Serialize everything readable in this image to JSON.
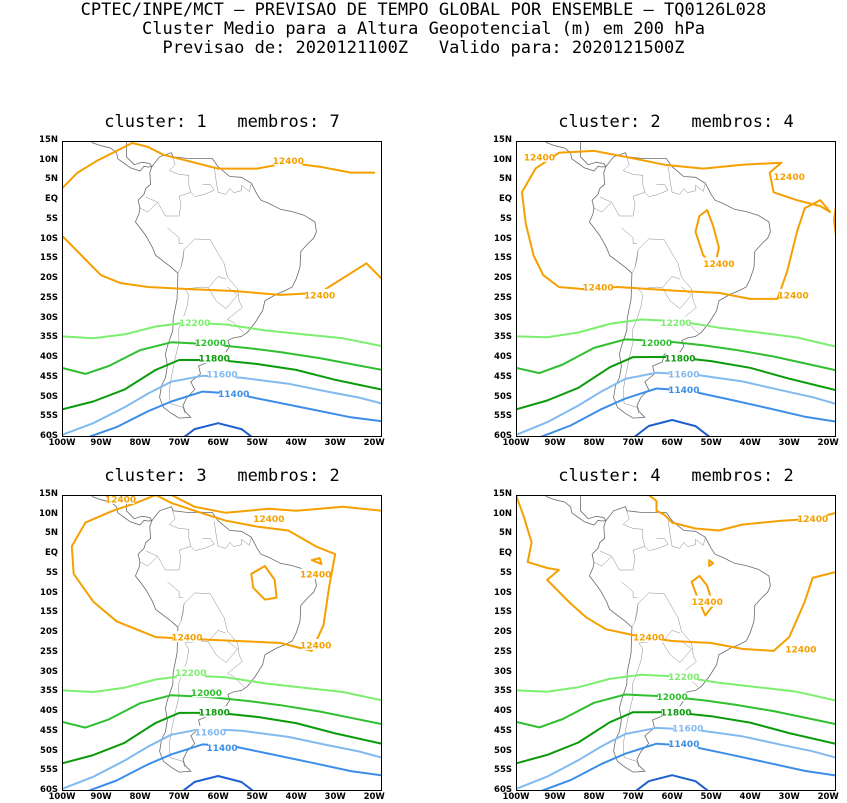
{
  "header": {
    "line1": "CPTEC/INPE/MCT – PREVISAO DE TEMPO GLOBAL POR ENSEMBLE – TQ0126L028",
    "line2": "Cluster Medio para a Altura Geopotencial (m) em 200 hPa",
    "line3": "Previsao de: 2020121100Z   Valido para: 2020121500Z"
  },
  "lat_labels": [
    "15N",
    "10N",
    "5N",
    "EQ",
    "5S",
    "10S",
    "15S",
    "20S",
    "25S",
    "30S",
    "35S",
    "40S",
    "45S",
    "50S",
    "55S",
    "60S"
  ],
  "lon_labels": [
    "100W",
    "90W",
    "80W",
    "70W",
    "60W",
    "50W",
    "40W",
    "30W",
    "20W"
  ],
  "contour_colors": {
    "12400": "#f5a000",
    "12200": "#7cef6e",
    "12000": "#2fbf2f",
    "11800": "#0a9b0a",
    "11600": "#82baf0",
    "11400": "#3c8ee8",
    "11200": "#1e5fd0"
  },
  "panels": [
    {
      "title": "cluster: 1   membros: 7",
      "contour_labels": [
        {
          "value": "12400",
          "lon": -42,
          "lat": 10
        },
        {
          "value": "12400",
          "lon": -34,
          "lat": -24
        },
        {
          "value": "12200",
          "lon": -66,
          "lat": -31
        },
        {
          "value": "12000",
          "lon": -62,
          "lat": -36
        },
        {
          "value": "11800",
          "lon": -61,
          "lat": -40
        },
        {
          "value": "11600",
          "lon": -59,
          "lat": -44
        },
        {
          "value": "11400",
          "lon": -56,
          "lat": -49
        }
      ]
    },
    {
      "title": "cluster: 2   membros: 4",
      "contour_labels": [
        {
          "value": "12400",
          "lon": -94,
          "lat": 11
        },
        {
          "value": "12400",
          "lon": -30,
          "lat": 6
        },
        {
          "value": "12400",
          "lon": -48,
          "lat": -16
        },
        {
          "value": "12400",
          "lon": -79,
          "lat": -22
        },
        {
          "value": "12400",
          "lon": -29,
          "lat": -24
        },
        {
          "value": "12200",
          "lon": -59,
          "lat": -31
        },
        {
          "value": "12000",
          "lon": -64,
          "lat": -36
        },
        {
          "value": "11800",
          "lon": -58,
          "lat": -40
        },
        {
          "value": "11600",
          "lon": -57,
          "lat": -44
        },
        {
          "value": "11400",
          "lon": -57,
          "lat": -48
        }
      ]
    },
    {
      "title": "cluster: 3   membros: 2",
      "contour_labels": [
        {
          "value": "12400",
          "lon": -85,
          "lat": 14
        },
        {
          "value": "12400",
          "lon": -47,
          "lat": 9
        },
        {
          "value": "12400",
          "lon": -35,
          "lat": -5
        },
        {
          "value": "12400",
          "lon": -68,
          "lat": -21
        },
        {
          "value": "12400",
          "lon": -35,
          "lat": -23
        },
        {
          "value": "12200",
          "lon": -67,
          "lat": -30
        },
        {
          "value": "12000",
          "lon": -63,
          "lat": -35
        },
        {
          "value": "11800",
          "lon": -61,
          "lat": -40
        },
        {
          "value": "11600",
          "lon": -62,
          "lat": -45
        },
        {
          "value": "11400",
          "lon": -59,
          "lat": -49
        }
      ]
    },
    {
      "title": "cluster: 4   membros: 2",
      "contour_labels": [
        {
          "value": "12400",
          "lon": -24,
          "lat": 9
        },
        {
          "value": "12400",
          "lon": -51,
          "lat": -12
        },
        {
          "value": "12400",
          "lon": -66,
          "lat": -21
        },
        {
          "value": "12400",
          "lon": -27,
          "lat": -24
        },
        {
          "value": "12200",
          "lon": -57,
          "lat": -31
        },
        {
          "value": "12000",
          "lon": -60,
          "lat": -36
        },
        {
          "value": "11800",
          "lon": -59,
          "lat": -40
        },
        {
          "value": "11600",
          "lon": -56,
          "lat": -44
        },
        {
          "value": "11400",
          "lon": -57,
          "lat": -48
        }
      ]
    }
  ]
}
